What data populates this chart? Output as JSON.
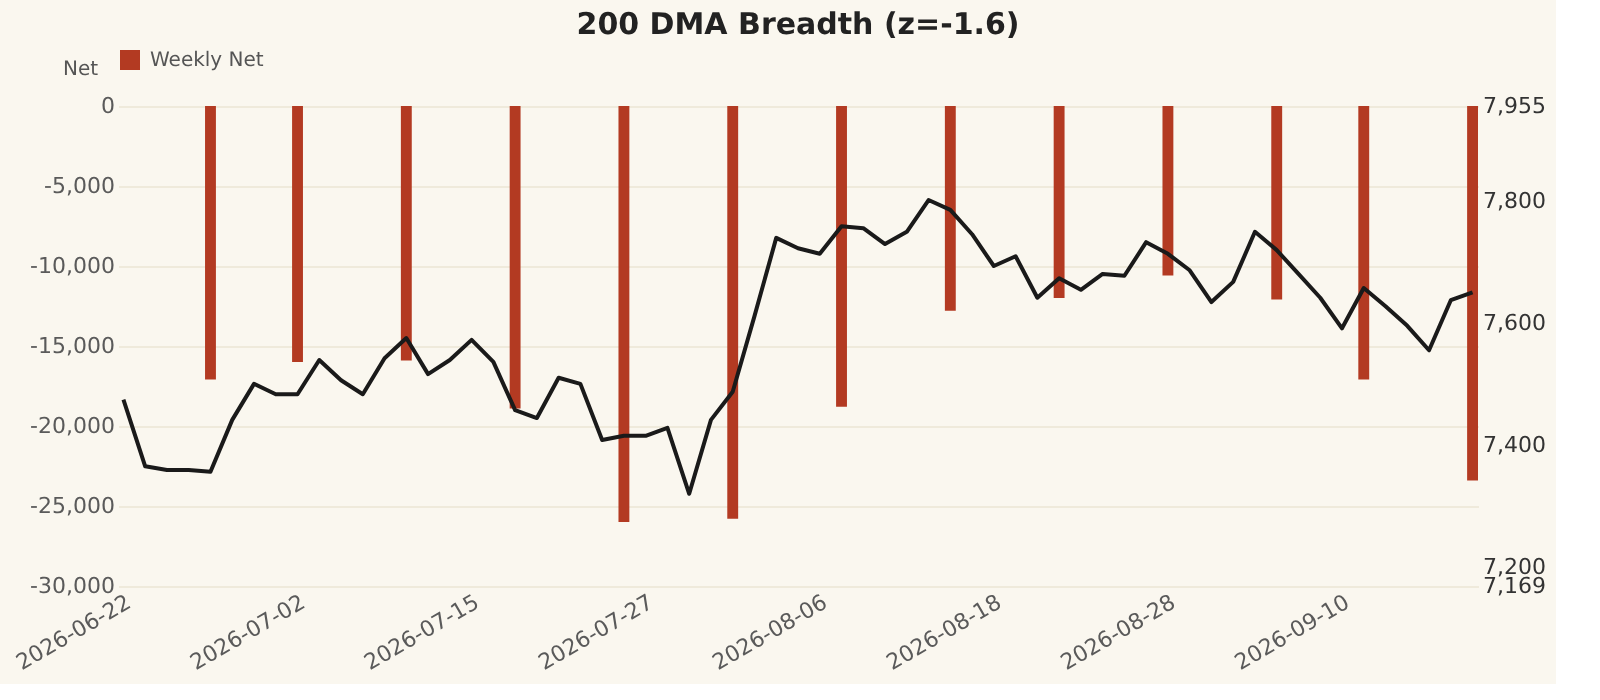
{
  "chart_data": {
    "type": "bar",
    "title": "200 DMA Breadth (z=-1.6)",
    "ylabel": "Net",
    "categories": [
      "2026-06-22",
      null,
      null,
      null,
      null,
      null,
      null,
      null,
      "2026-07-02",
      null,
      null,
      null,
      null,
      null,
      null,
      null,
      "2026-07-15",
      null,
      null,
      null,
      null,
      null,
      null,
      null,
      "2026-07-27",
      null,
      null,
      null,
      null,
      null,
      null,
      null,
      "2026-08-06",
      null,
      null,
      null,
      null,
      null,
      null,
      null,
      "2026-08-18",
      null,
      null,
      null,
      null,
      null,
      null,
      null,
      "2026-08-28",
      null,
      null,
      null,
      null,
      null,
      null,
      null,
      "2026-09-10",
      null,
      null,
      null,
      null,
      null,
      null
    ],
    "series": [
      {
        "name": "Weekly Net",
        "color": "#b33a22",
        "values": [
          null,
          null,
          null,
          null,
          -17100,
          null,
          null,
          null,
          -16000,
          null,
          null,
          null,
          null,
          -15900,
          null,
          null,
          null,
          null,
          -18900,
          null,
          null,
          null,
          null,
          -26000,
          null,
          null,
          null,
          null,
          -25800,
          null,
          null,
          null,
          null,
          -18800,
          null,
          null,
          null,
          null,
          -12800,
          null,
          null,
          null,
          null,
          -12000,
          null,
          null,
          null,
          null,
          -10600,
          null,
          null,
          null,
          null,
          -12100,
          null,
          null,
          null,
          -17100,
          null,
          null,
          null,
          null,
          -23400
        ]
      },
      {
        "type": "line",
        "color": "#1a1a1a",
        "axis": "y2",
        "values": [
          7474,
          7365,
          7359,
          7359,
          7356,
          7441,
          7500,
          7483,
          7483,
          7539,
          7506,
          7483,
          7542,
          7575,
          7516,
          7539,
          7572,
          7536,
          7457,
          7444,
          7510,
          7500,
          7408,
          7415,
          7415,
          7428,
          7320,
          7441,
          7487,
          7611,
          7739,
          7722,
          7713,
          7758,
          7755,
          7729,
          7749,
          7801,
          7785,
          7745,
          7693,
          7709,
          7641,
          7673,
          7654,
          7680,
          7677,
          7732,
          7713,
          7686,
          7634,
          7667,
          7749,
          7719,
          7680,
          7641,
          7591,
          7657,
          7627,
          7595,
          7555,
          7637,
          7650
        ]
      }
    ],
    "ylim": [
      -30000,
      0
    ],
    "yticks": [
      {
        "value": -30000,
        "label": "-30,000"
      },
      {
        "value": -25000,
        "label": "-25,000"
      },
      {
        "value": -20000,
        "label": "-20,000"
      },
      {
        "value": -15000,
        "label": "-15,000"
      },
      {
        "value": -10000,
        "label": "-10,000"
      },
      {
        "value": -5000,
        "label": "-5,000"
      },
      0
    ],
    "y2lim": [
      7169,
      7955
    ],
    "y2ticks": [
      {
        "value": 7169,
        "label": "7,169"
      },
      {
        "value": 7200,
        "label": "7,200"
      },
      {
        "value": 7400,
        "label": "7,400"
      },
      {
        "value": 7600,
        "label": "7,600"
      },
      {
        "value": 7800,
        "label": "7,800"
      },
      {
        "value": 7955,
        "label": "7,955"
      }
    ],
    "grid": "y",
    "legend": "top",
    "marker": "none",
    "line_style": "solid"
  }
}
